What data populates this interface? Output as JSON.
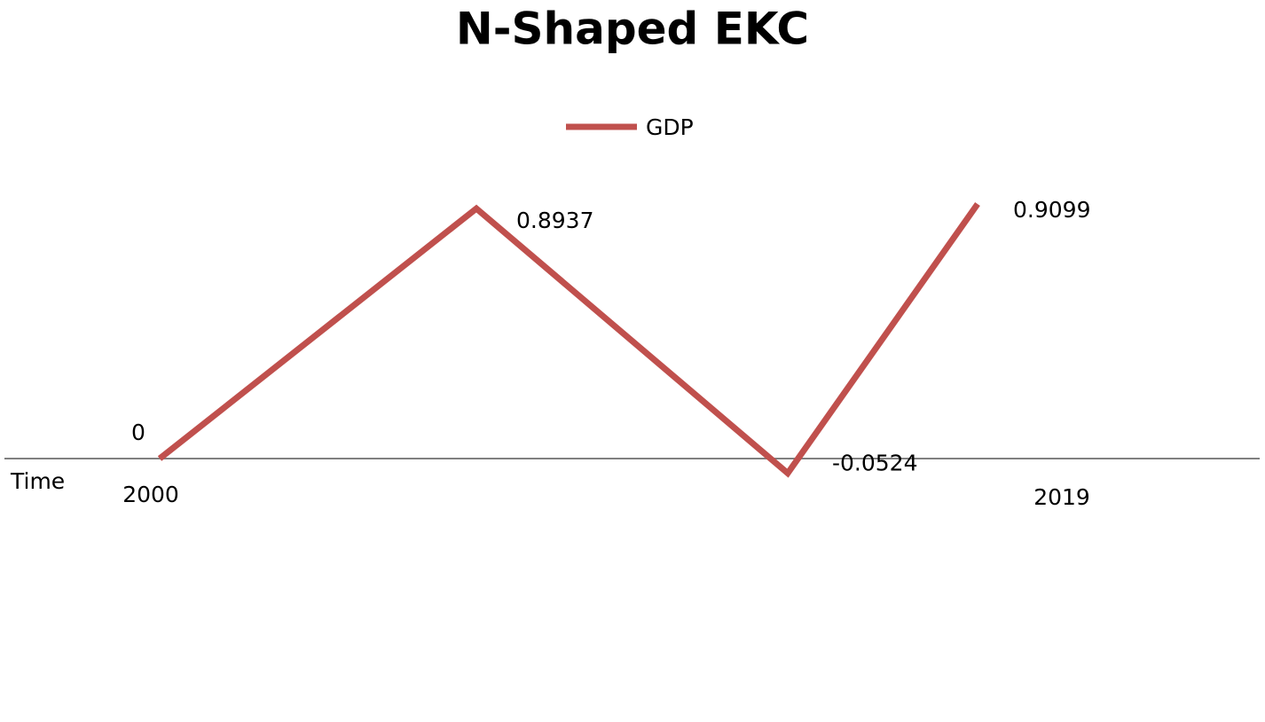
{
  "chart_data": {
    "type": "line",
    "title": "N-Shaped EKC",
    "x_label": "Time",
    "categories": [
      "2000",
      null,
      null,
      "2019"
    ],
    "series": [
      {
        "name": "GDP",
        "color": "#c0504d",
        "values": [
          0,
          0.8937,
          -0.0524,
          0.9099
        ]
      }
    ],
    "legend": "top"
  }
}
